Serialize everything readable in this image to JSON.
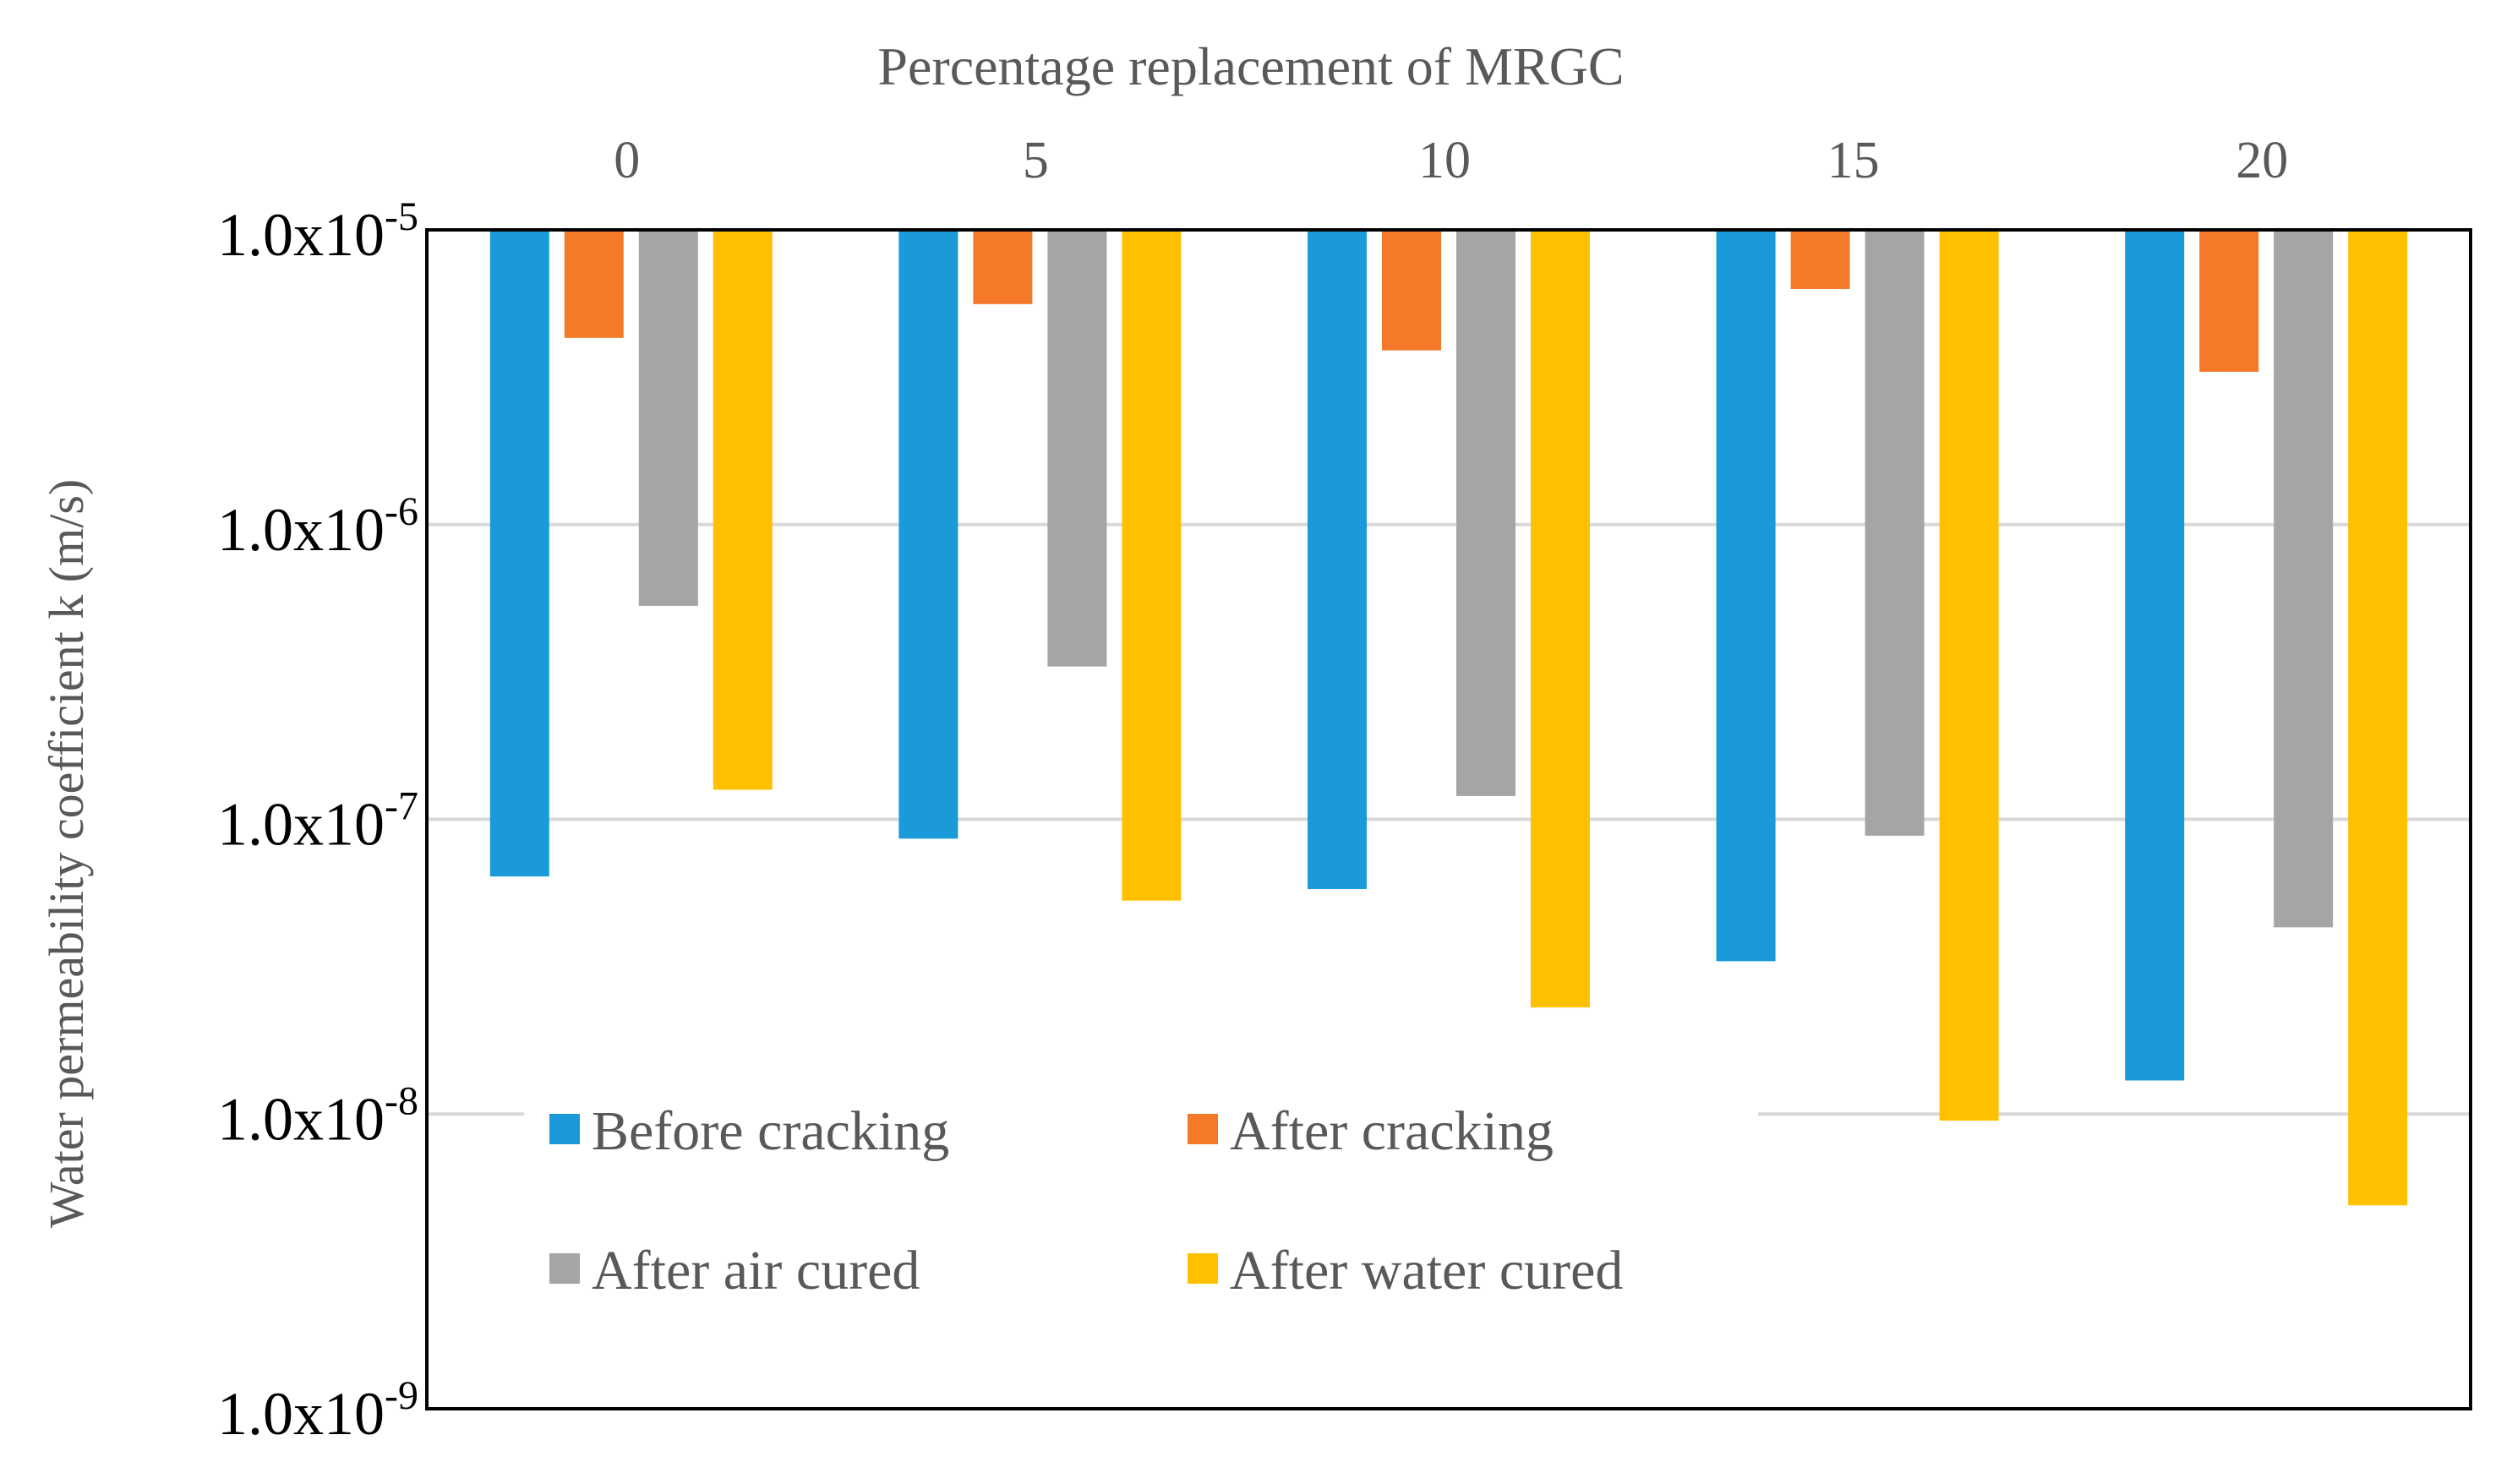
{
  "chart_data": {
    "type": "bar",
    "title": "",
    "xlabel": "Percentage replacement of MRGC",
    "ylabel": "Water permeability coefficient k (m/s)",
    "y_scale": "log",
    "ylim": [
      1e-09,
      1e-05
    ],
    "y_axis_inverted": true,
    "categories": [
      "0",
      "5",
      "10",
      "15",
      "20"
    ],
    "y_tick_labels": [
      {
        "base": "1.0x10",
        "exp": "-5",
        "value": 1e-05
      },
      {
        "base": "1.0x10",
        "exp": "-6",
        "value": 1e-06
      },
      {
        "base": "1.0x10",
        "exp": "-7",
        "value": 1e-07
      },
      {
        "base": "1.0x10",
        "exp": "-8",
        "value": 1e-08
      },
      {
        "base": "1.0x10",
        "exp": "-9",
        "value": 1e-09
      }
    ],
    "series": [
      {
        "name": "Before cracking",
        "color": "#1a9ad8",
        "values": [
          6.4e-08,
          8.6e-08,
          5.8e-08,
          3.3e-08,
          1.3e-08
        ]
      },
      {
        "name": "After cracking",
        "color": "#f47a2a",
        "values": [
          4.3e-06,
          5.6e-06,
          3.9e-06,
          6.3e-06,
          3.3e-06
        ]
      },
      {
        "name": "After air cured",
        "color": "#a5a5a5",
        "values": [
          5.3e-07,
          3.3e-07,
          1.2e-07,
          8.8e-08,
          4.3e-08
        ]
      },
      {
        "name": "After water cured",
        "color": "#ffc000",
        "values": [
          1.26e-07,
          5.3e-08,
          2.3e-08,
          9.5e-09,
          4.9e-09
        ]
      }
    ],
    "legend_position": "lower-left inside plot",
    "grid": true
  }
}
